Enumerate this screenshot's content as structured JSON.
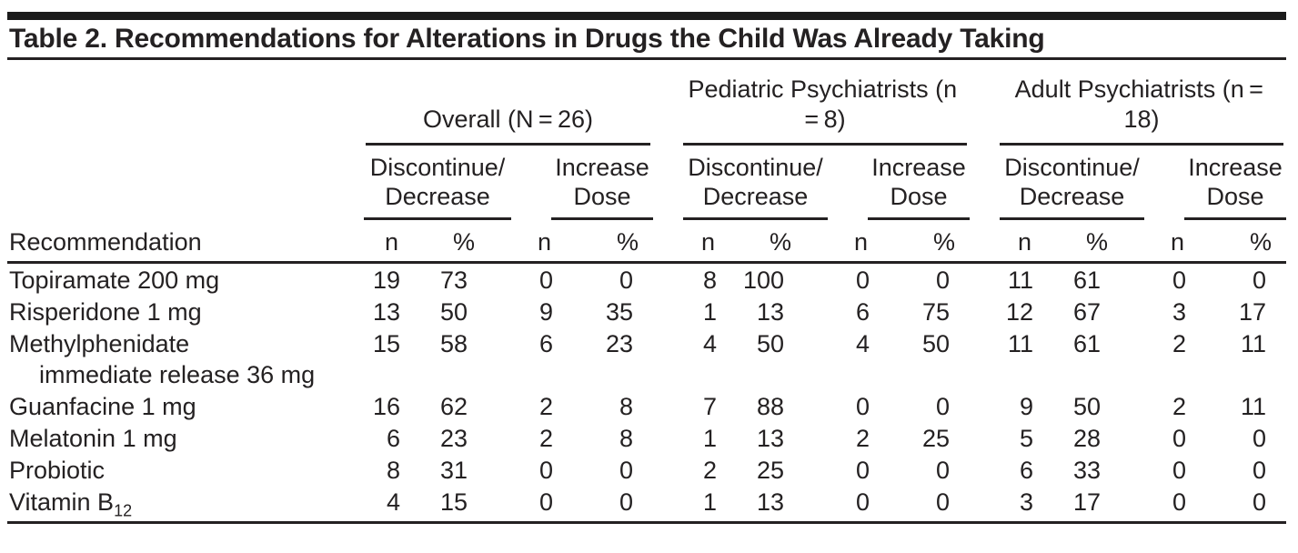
{
  "title": "Table 2. Recommendations for Alterations in Drugs the Child Was Already Taking",
  "table": {
    "row_header": "Recommendation",
    "groups": [
      {
        "label": "Overall (N = 26)"
      },
      {
        "label": "Pediatric Psychiatrists (n = 8)"
      },
      {
        "label": "Adult Psychiatrists (n = 18)"
      }
    ],
    "subheader_discontinue": "Discontinue/\nDecrease",
    "subheader_increase": "Increase\nDose",
    "col_n": "n",
    "col_pct": "%",
    "rows": [
      {
        "label": "Topiramate 200 mg",
        "values": [
          "19",
          "73",
          "0",
          "0",
          "8",
          "100",
          "0",
          "0",
          "11",
          "61",
          "0",
          "0"
        ]
      },
      {
        "label": "Risperidone 1 mg",
        "values": [
          "13",
          "50",
          "9",
          "35",
          "1",
          "13",
          "6",
          "75",
          "12",
          "67",
          "3",
          "17"
        ]
      },
      {
        "label": "Methylphenidate",
        "label_line2": "immediate release 36 mg",
        "values": [
          "15",
          "58",
          "6",
          "23",
          "4",
          "50",
          "4",
          "50",
          "11",
          "61",
          "2",
          "11"
        ]
      },
      {
        "label": "Guanfacine 1 mg",
        "values": [
          "16",
          "62",
          "2",
          "8",
          "7",
          "88",
          "0",
          "0",
          "9",
          "50",
          "2",
          "11"
        ]
      },
      {
        "label": "Melatonin 1 mg",
        "values": [
          "6",
          "23",
          "2",
          "8",
          "1",
          "13",
          "2",
          "25",
          "5",
          "28",
          "0",
          "0"
        ]
      },
      {
        "label": "Probiotic",
        "values": [
          "8",
          "31",
          "0",
          "0",
          "2",
          "25",
          "0",
          "0",
          "6",
          "33",
          "0",
          "0"
        ]
      },
      {
        "label": "Vitamin B",
        "label_subscript": "12",
        "values": [
          "4",
          "15",
          "0",
          "0",
          "1",
          "13",
          "0",
          "0",
          "3",
          "17",
          "0",
          "0"
        ]
      }
    ]
  },
  "colors": {
    "text": "#242122",
    "rule": "#242122",
    "top_bar": "#1b1b1b",
    "background": "#ffffff"
  }
}
